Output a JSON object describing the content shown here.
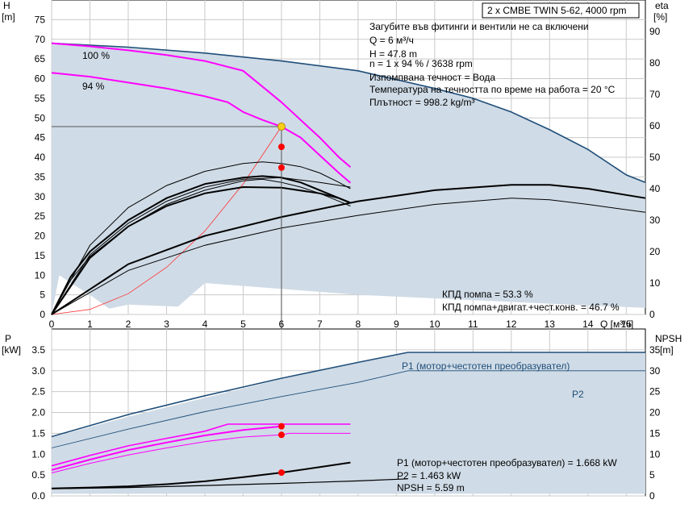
{
  "title": "2 x CMBE TWIN 5-62, 4000 rpm",
  "colors": {
    "envelope_fill": "#cfdbe6",
    "dark_blue": "#1f4e79",
    "magenta": "#ff00ff",
    "black": "#000000",
    "red_marker": "#ff0000",
    "red_line": "#ff3333",
    "grid": "#c9c9c9",
    "op_marker_fill": "#f7d117"
  },
  "top": {
    "y_label_left": "H",
    "y_unit_left": "[m]",
    "y_label_right": "eta",
    "y_unit_right": "[%]",
    "x_label": "Q [м³/ч]",
    "curve_labels": [
      "100 %",
      "94 %"
    ],
    "info_lines": [
      "Загубите във фитинги и вентили не са включени",
      "Q = 6 м³/ч",
      "H = 47.8 m",
      "n = 1 x 94 % / 3638 rpm",
      "Изпомпвана течност = Вода",
      "Температура на течността по време на работа = 20 °C",
      "Плътност = 998.2 kg/m³"
    ],
    "eff_lines": [
      "КПД помпа = 53.3 %",
      "КПД помпа+двигат.+чест.конв. = 46.7 %"
    ]
  },
  "bottom": {
    "y_label_left": "P",
    "y_unit_left": "[kW]",
    "y_label_right": "NPSH",
    "y_unit_right": "[m]",
    "series_labels": [
      "P1 (мотор+честотен преобразувател)",
      "P2"
    ],
    "info_lines": [
      "P1 (мотор+честотен преобразувател) = 1.668 kW",
      "P2 = 1.463 kW",
      "NPSH = 5.59 m"
    ]
  },
  "chart_data": [
    {
      "type": "line",
      "name": "H-Q",
      "xlim": [
        0,
        15.5
      ],
      "ylim": [
        0,
        80
      ],
      "y2lim": [
        0,
        100
      ],
      "x_ticks": [
        0,
        1,
        2,
        3,
        4,
        5,
        6,
        7,
        8,
        9,
        10,
        11,
        12,
        13,
        14,
        15
      ],
      "y_ticks": [
        0,
        5,
        10,
        15,
        20,
        25,
        30,
        35,
        40,
        45,
        50,
        55,
        60,
        65,
        70,
        75
      ],
      "y2_ticks": [
        0,
        10,
        20,
        30,
        40,
        50,
        60,
        70,
        80,
        90
      ],
      "envelope": [
        [
          0,
          69
        ],
        [
          2,
          68
        ],
        [
          4,
          66.5
        ],
        [
          6,
          64.5
        ],
        [
          8,
          62
        ],
        [
          10,
          57.5
        ],
        [
          11,
          55
        ],
        [
          12,
          51.5
        ],
        [
          13,
          47
        ],
        [
          14,
          42
        ],
        [
          15,
          35.5
        ],
        [
          15.5,
          33.6
        ],
        [
          15.5,
          1.7
        ],
        [
          14,
          2.3
        ],
        [
          12,
          3.2
        ],
        [
          10,
          4.1
        ],
        [
          8,
          5
        ],
        [
          6,
          6.5
        ],
        [
          4,
          8
        ],
        [
          3.3,
          2
        ],
        [
          2,
          2.5
        ],
        [
          1.5,
          1.5
        ],
        [
          1,
          5
        ],
        [
          0.5,
          8
        ],
        [
          0.2,
          10
        ],
        [
          0,
          0
        ]
      ],
      "series": [
        {
          "curve": "max",
          "axis": "left",
          "points": [
            [
              0,
              69
            ],
            [
              2,
              68
            ],
            [
              4,
              66.5
            ],
            [
              6,
              64.5
            ],
            [
              8,
              62
            ],
            [
              10,
              57.5
            ],
            [
              11,
              55
            ],
            [
              12,
              51.5
            ],
            [
              13,
              47
            ],
            [
              14,
              42
            ],
            [
              15,
              35.5
            ],
            [
              15.5,
              33.6
            ]
          ]
        },
        {
          "curve": "100 %",
          "axis": "left",
          "points": [
            [
              0,
              69
            ],
            [
              1,
              68.2
            ],
            [
              2,
              67.2
            ],
            [
              3,
              66
            ],
            [
              4,
              64.5
            ],
            [
              5,
              62
            ],
            [
              5.5,
              58
            ],
            [
              6,
              54
            ],
            [
              6.5,
              49.5
            ],
            [
              7,
              45
            ],
            [
              7.5,
              40
            ],
            [
              7.8,
              37.5
            ]
          ]
        },
        {
          "curve": "94 %",
          "axis": "left",
          "points": [
            [
              0,
              61.5
            ],
            [
              1,
              60.5
            ],
            [
              2,
              59
            ],
            [
              3,
              57.5
            ],
            [
              4,
              55.5
            ],
            [
              4.6,
              54
            ],
            [
              5,
              51.5
            ],
            [
              5.5,
              49.5
            ],
            [
              6,
              47.8
            ],
            [
              6.5,
              45
            ],
            [
              7,
              40.5
            ],
            [
              7.5,
              36
            ],
            [
              7.8,
              33.5
            ]
          ]
        },
        {
          "curve": "system",
          "axis": "left",
          "points": [
            [
              0,
              0
            ],
            [
              1,
              1.3
            ],
            [
              2,
              5.3
            ],
            [
              3,
              12
            ],
            [
              4,
              21.2
            ],
            [
              5,
              33.2
            ],
            [
              6,
              47.8
            ]
          ]
        },
        {
          "curve": "eta-1",
          "axis": "right",
          "points": [
            [
              0,
              0
            ],
            [
              0.5,
              12
            ],
            [
              1,
              20
            ],
            [
              2,
              30
            ],
            [
              3,
              37
            ],
            [
              4,
              41.5
            ],
            [
              5,
              43.5
            ],
            [
              5.5,
              44
            ],
            [
              6,
              43.5
            ],
            [
              6.5,
              42
            ],
            [
              7,
              39.5
            ],
            [
              7.5,
              37
            ],
            [
              7.8,
              35.5
            ]
          ]
        },
        {
          "curve": "eta-2",
          "axis": "right",
          "points": [
            [
              0,
              0
            ],
            [
              0.5,
              11
            ],
            [
              1,
              18.5
            ],
            [
              2,
              28
            ],
            [
              3,
              35
            ],
            [
              4,
              39.5
            ],
            [
              5,
              42.5
            ],
            [
              5.5,
              43
            ],
            [
              6,
              42
            ],
            [
              6.5,
              40.5
            ],
            [
              7,
              38.5
            ],
            [
              7.5,
              36
            ],
            [
              7.8,
              34.5
            ]
          ]
        },
        {
          "curve": "eta-3",
          "axis": "right",
          "points": [
            [
              0,
              0
            ],
            [
              1,
              19
            ],
            [
              2,
              29
            ],
            [
              3,
              36
            ],
            [
              4,
              40.5
            ],
            [
              5,
              43
            ],
            [
              6,
              43.5
            ],
            [
              7,
              42
            ],
            [
              7.8,
              40.5
            ]
          ]
        },
        {
          "curve": "eta-4",
          "axis": "right",
          "points": [
            [
              0,
              0
            ],
            [
              1,
              18
            ],
            [
              2,
              28
            ],
            [
              3,
              34.5
            ],
            [
              4,
              38.5
            ],
            [
              5,
              40.5
            ],
            [
              6,
              40.3
            ],
            [
              7,
              38.5
            ],
            [
              7.5,
              37
            ],
            [
              7.8,
              35.5
            ]
          ]
        },
        {
          "curve": "eta-5",
          "axis": "right",
          "points": [
            [
              0,
              0
            ],
            [
              2,
              16
            ],
            [
              4,
              25
            ],
            [
              6,
              31
            ],
            [
              8,
              36
            ],
            [
              10,
              39.5
            ],
            [
              12,
              41.2
            ],
            [
              13,
              41.2
            ],
            [
              14,
              40
            ],
            [
              15.5,
              37
            ]
          ]
        },
        {
          "curve": "eta-6",
          "axis": "right",
          "points": [
            [
              0,
              0
            ],
            [
              2,
              14
            ],
            [
              4,
              22
            ],
            [
              6,
              27.5
            ],
            [
              8,
              31.5
            ],
            [
              10,
              35
            ],
            [
              12,
              37
            ],
            [
              13,
              36.5
            ],
            [
              14,
              35
            ],
            [
              15.5,
              32.5
            ]
          ]
        },
        {
          "curve": "eta-peak",
          "axis": "right",
          "points": [
            [
              0,
              0
            ],
            [
              1,
              22
            ],
            [
              2,
              34
            ],
            [
              3,
              41
            ],
            [
              4,
              45.5
            ],
            [
              5,
              48
            ],
            [
              5.5,
              48.5
            ],
            [
              6,
              48
            ],
            [
              6.5,
              47
            ],
            [
              7,
              45
            ],
            [
              7.5,
              42
            ],
            [
              7.8,
              40
            ]
          ]
        }
      ],
      "operating_points": [
        {
          "x": 6,
          "y": 47.8,
          "axis": "left",
          "kind": "duty"
        },
        {
          "x": 6,
          "y": 53.3,
          "axis": "right",
          "kind": "eta"
        },
        {
          "x": 6,
          "y": 46.7,
          "axis": "right",
          "kind": "eta"
        }
      ]
    },
    {
      "type": "line",
      "name": "P-Q / NPSH",
      "xlim": [
        0,
        15.5
      ],
      "ylim": [
        0,
        4
      ],
      "y2lim": [
        0,
        40
      ],
      "y_ticks": [
        0,
        0.5,
        1.0,
        1.5,
        2.0,
        2.5,
        3.0,
        3.5
      ],
      "y_tick_labels": [
        "0.0",
        "0.5",
        "1.0",
        "1.5",
        "2.0",
        "2.5",
        "3.0",
        "3.5"
      ],
      "y2_ticks": [
        0,
        5,
        10,
        15,
        20,
        25,
        30,
        35
      ],
      "envelope": [
        [
          0,
          1.4
        ],
        [
          2,
          1.9
        ],
        [
          4,
          2.35
        ],
        [
          6,
          2.8
        ],
        [
          9.3,
          3.45
        ],
        [
          15.5,
          3.45
        ],
        [
          15.5,
          0.05
        ],
        [
          12,
          0.05
        ],
        [
          8,
          0.05
        ],
        [
          4,
          0.05
        ],
        [
          0,
          0.05
        ]
      ],
      "series": [
        {
          "name": "P1 (мотор+честотен преобразувател)",
          "axis": "left",
          "points": [
            [
              0,
              1.42
            ],
            [
              2,
              1.95
            ],
            [
              4,
              2.4
            ],
            [
              6,
              2.82
            ],
            [
              8,
              3.2
            ],
            [
              9.3,
              3.44
            ],
            [
              15.5,
              3.44
            ]
          ]
        },
        {
          "name": "P2",
          "axis": "left",
          "points": [
            [
              0,
              1.15
            ],
            [
              2,
              1.6
            ],
            [
              4,
              2.02
            ],
            [
              6,
              2.38
            ],
            [
              8,
              2.72
            ],
            [
              9.3,
              3.0
            ],
            [
              15.5,
              3.0
            ]
          ]
        },
        {
          "curve": "P1-100",
          "axis": "left",
          "points": [
            [
              0,
              0.72
            ],
            [
              1,
              0.97
            ],
            [
              2,
              1.2
            ],
            [
              3,
              1.38
            ],
            [
              4,
              1.55
            ],
            [
              4.6,
              1.72
            ],
            [
              5,
              1.72
            ],
            [
              6,
              1.72
            ],
            [
              7,
              1.72
            ],
            [
              7.8,
              1.72
            ]
          ]
        },
        {
          "curve": "P1-94",
          "axis": "left",
          "points": [
            [
              0,
              0.62
            ],
            [
              1,
              0.87
            ],
            [
              2,
              1.1
            ],
            [
              3,
              1.28
            ],
            [
              4,
              1.45
            ],
            [
              5,
              1.58
            ],
            [
              6,
              1.668
            ]
          ]
        },
        {
          "curve": "P2-94",
          "axis": "left",
          "points": [
            [
              0,
              0.55
            ],
            [
              1,
              0.78
            ],
            [
              2,
              0.98
            ],
            [
              3,
              1.15
            ],
            [
              4,
              1.3
            ],
            [
              5,
              1.41
            ],
            [
              6,
              1.463
            ],
            [
              6.2,
              1.5
            ],
            [
              7.8,
              1.5
            ]
          ]
        },
        {
          "curve": "NPSH-1",
          "axis": "right",
          "points": [
            [
              0,
              1.8
            ],
            [
              1,
              2.0
            ],
            [
              2,
              2.3
            ],
            [
              3,
              2.8
            ],
            [
              4,
              3.5
            ],
            [
              5,
              4.5
            ],
            [
              6,
              5.59
            ],
            [
              7,
              6.9
            ],
            [
              7.8,
              8
            ]
          ]
        },
        {
          "curve": "NPSH-2",
          "axis": "right",
          "points": [
            [
              0,
              1.7
            ],
            [
              2,
              2.0
            ],
            [
              4,
              2.5
            ],
            [
              6,
              3.0
            ],
            [
              8,
              3.6
            ],
            [
              9.3,
              4.1
            ]
          ]
        }
      ],
      "operating_points": [
        {
          "x": 6,
          "y": 1.668,
          "axis": "left"
        },
        {
          "x": 6,
          "y": 1.463,
          "axis": "left"
        },
        {
          "x": 6,
          "y": 5.59,
          "axis": "right"
        }
      ]
    }
  ]
}
